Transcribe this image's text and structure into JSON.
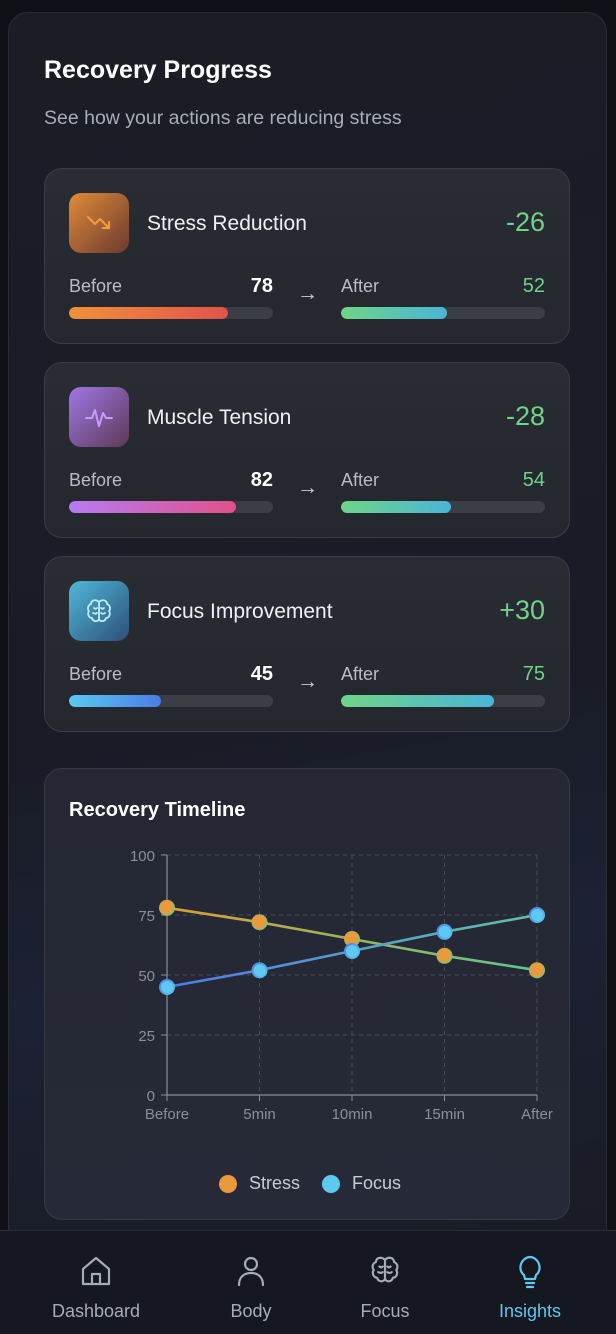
{
  "header": {
    "title": "Recovery Progress",
    "subtitle": "See how your actions are reducing stress"
  },
  "metrics": [
    {
      "name": "Stress Reduction",
      "icon": "trending-down-icon",
      "delta": "-26",
      "before_label": "Before",
      "before": 78,
      "after_label": "After",
      "after": 52,
      "before_colors": [
        "#f0913a",
        "#e2534c"
      ],
      "icon_bg": [
        "#e08b38",
        "#6b3a30"
      ]
    },
    {
      "name": "Muscle Tension",
      "icon": "pulse-icon",
      "delta": "-28",
      "before_label": "Before",
      "before": 82,
      "after_label": "After",
      "after": 54,
      "before_colors": [
        "#b57cf2",
        "#e2508a"
      ],
      "icon_bg": [
        "#a177e6",
        "#5c3a55"
      ]
    },
    {
      "name": "Focus Improvement",
      "icon": "brain-icon",
      "delta": "+30",
      "before_label": "Before",
      "before": 45,
      "after_label": "After",
      "after": 75,
      "before_colors": [
        "#5bc9f0",
        "#4b7ce8"
      ],
      "icon_bg": [
        "#4fb8d8",
        "#2e4f78"
      ]
    }
  ],
  "arrow": "→",
  "after_colors": [
    "#6fd487",
    "#4ab5d8"
  ],
  "chart_data": {
    "type": "line",
    "title": "Recovery Timeline",
    "x": [
      "Before",
      "5min",
      "10min",
      "15min",
      "After"
    ],
    "ylim": [
      0,
      100
    ],
    "yticks": [
      0,
      25,
      50,
      75,
      100
    ],
    "grid": true,
    "legend_position": "bottom",
    "series": [
      {
        "name": "Stress",
        "values": [
          78,
          72,
          65,
          58,
          52
        ],
        "color": "#ea9a3a"
      },
      {
        "name": "Focus",
        "values": [
          45,
          52,
          60,
          68,
          75
        ],
        "color": "#5ec8f0"
      }
    ]
  },
  "nav": {
    "items": [
      {
        "label": "Dashboard",
        "icon": "home-icon",
        "active": false
      },
      {
        "label": "Body",
        "icon": "user-icon",
        "active": false
      },
      {
        "label": "Focus",
        "icon": "brain-icon",
        "active": false
      },
      {
        "label": "Insights",
        "icon": "lightbulb-icon",
        "active": true
      }
    ]
  }
}
